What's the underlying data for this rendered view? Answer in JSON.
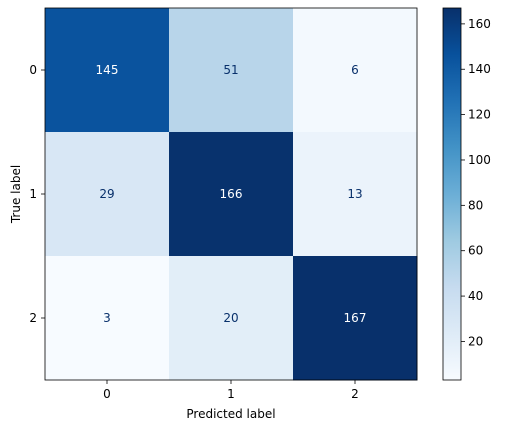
{
  "chart_data": {
    "type": "heatmap",
    "title": "",
    "xlabel": "Predicted label",
    "ylabel": "True label",
    "x_categories": [
      "0",
      "1",
      "2"
    ],
    "y_categories": [
      "0",
      "1",
      "2"
    ],
    "values": [
      [
        145,
        51,
        6
      ],
      [
        29,
        166,
        13
      ],
      [
        3,
        20,
        167
      ]
    ],
    "colormap": "Blues",
    "colorbar": {
      "range": [
        3,
        167
      ],
      "ticks": [
        20,
        40,
        60,
        80,
        100,
        120,
        140,
        160
      ]
    },
    "cell_text_colors": {
      "light_background": "#08306b",
      "dark_background": "#ffffff"
    },
    "grid": false
  }
}
